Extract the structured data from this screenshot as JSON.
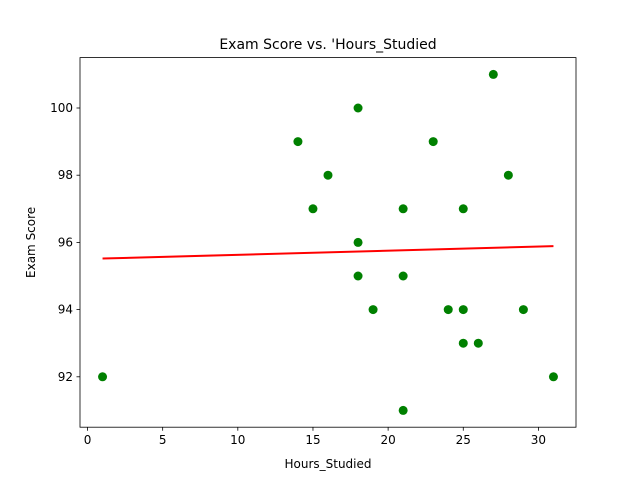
{
  "chart_data": {
    "type": "scatter",
    "title": "Exam Score vs. 'Hours_Studied",
    "xlabel": "Hours_Studied",
    "ylabel": "Exam Score",
    "xlim": [
      -0.5,
      32.5
    ],
    "ylim": [
      90.5,
      101.5
    ],
    "xticks": [
      0,
      5,
      10,
      15,
      20,
      25,
      30
    ],
    "yticks": [
      92,
      94,
      96,
      98,
      100
    ],
    "grid": false,
    "points": {
      "color": "#008000",
      "x": [
        1,
        14,
        15,
        16,
        18,
        18,
        18,
        19,
        21,
        21,
        21,
        23,
        24,
        25,
        25,
        25,
        26,
        27,
        28,
        29,
        31
      ],
      "y": [
        92,
        99,
        97,
        98,
        100,
        96,
        95,
        94,
        97,
        95,
        91,
        99,
        94,
        97,
        94,
        93,
        93,
        101,
        98,
        94,
        92
      ]
    },
    "trendline": {
      "color": "#ff0000",
      "x": [
        1,
        31
      ],
      "y": [
        95.52,
        95.89
      ]
    }
  }
}
